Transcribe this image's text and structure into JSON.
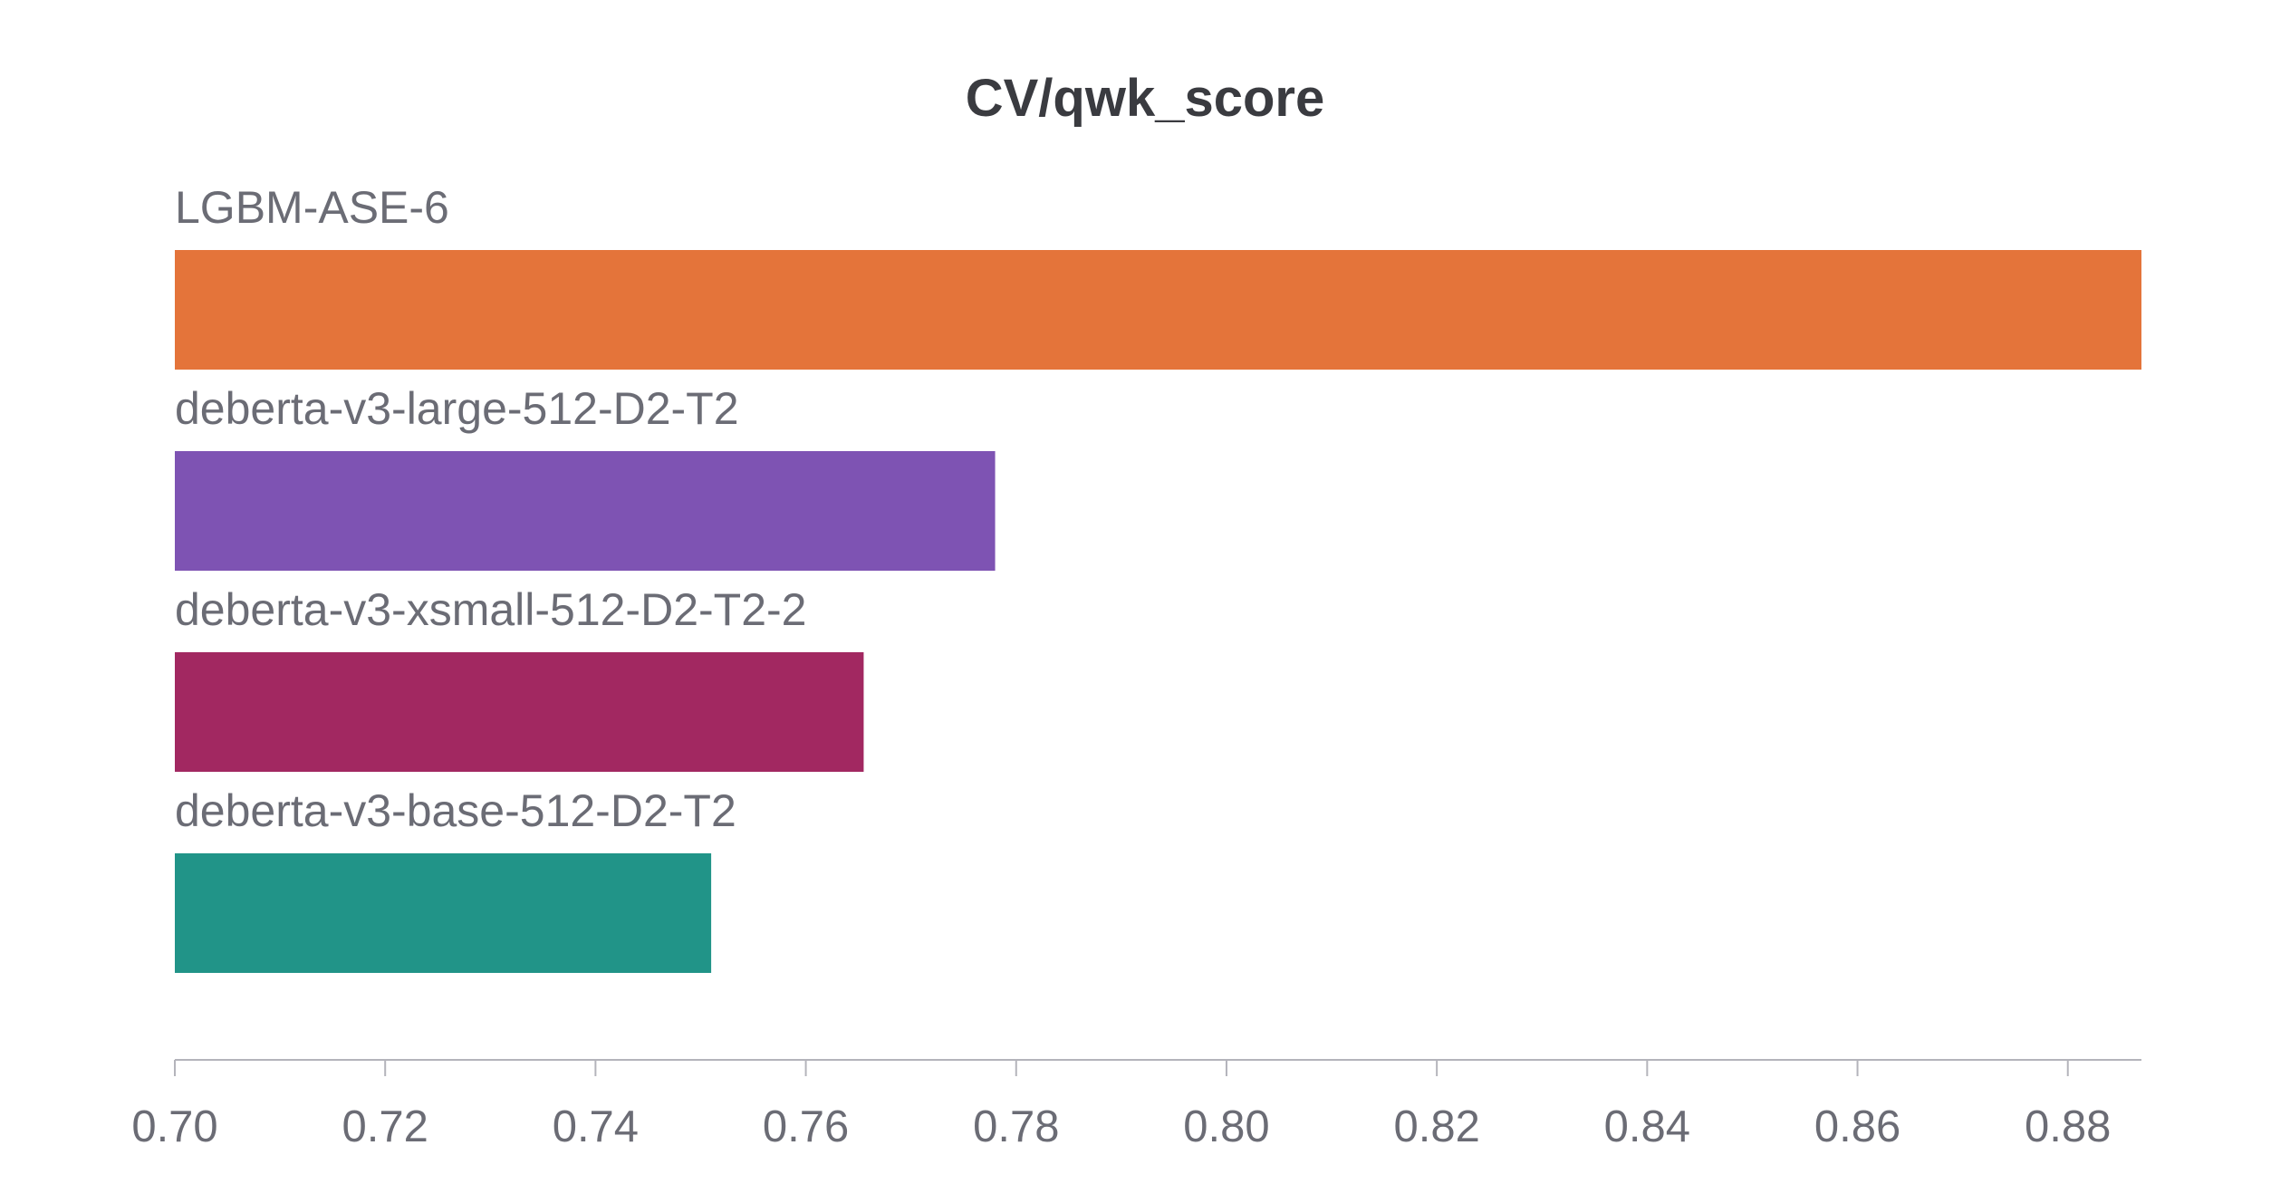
{
  "chart_data": {
    "type": "bar",
    "orientation": "horizontal",
    "title": "CV/qwk_score",
    "categories": [
      "LGBM-ASE-6",
      "deberta-v3-large-512-D2-T2",
      "deberta-v3-xsmall-512-D2-T2-2",
      "deberta-v3-base-512-D2-T2"
    ],
    "values": [
      0.887,
      0.778,
      0.7655,
      0.751
    ],
    "colors": [
      "#e4743a",
      "#7e53b3",
      "#a22861",
      "#219488"
    ],
    "xlim": [
      0.7,
      0.887
    ],
    "xticks": [
      "0.70",
      "0.72",
      "0.74",
      "0.76",
      "0.78",
      "0.80",
      "0.82",
      "0.84",
      "0.86",
      "0.88"
    ],
    "xlabel": "",
    "ylabel": "",
    "grid": false,
    "legend": "none"
  }
}
